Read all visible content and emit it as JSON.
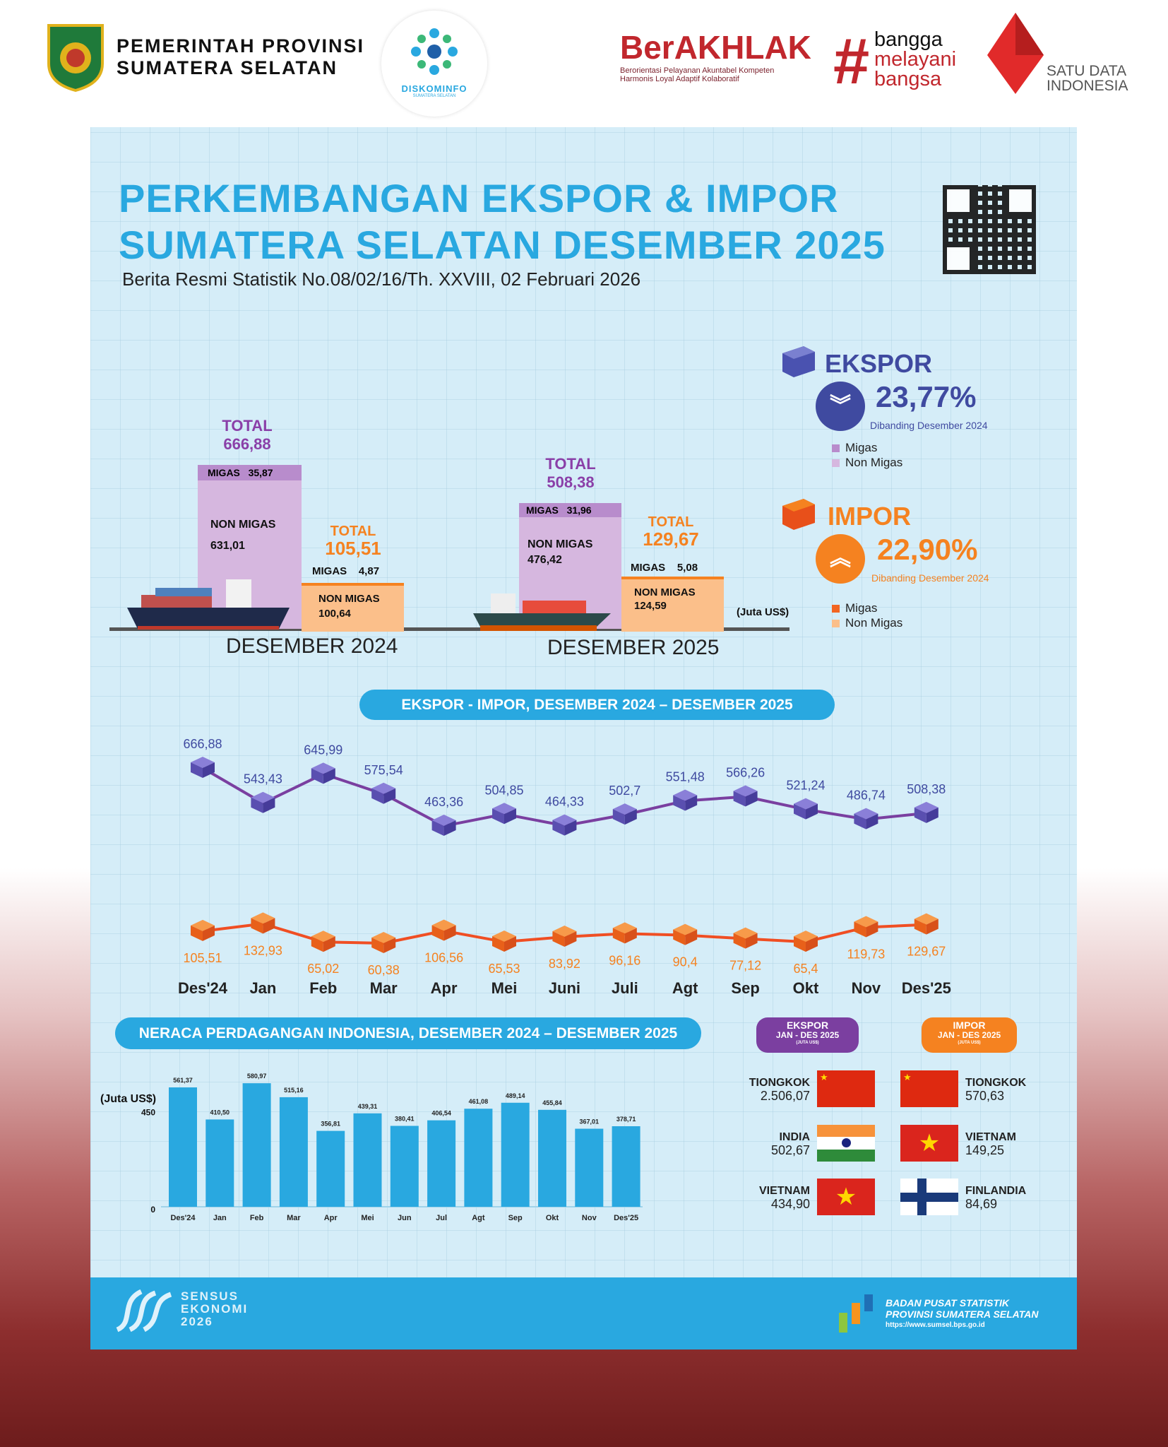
{
  "header": {
    "province_line1": "PEMERINTAH PROVINSI",
    "province_line2": "SUMATERA SELATAN",
    "diskominfo": "DISKOMINFO",
    "diskominfo_sub": "SUMATERA SELATAN",
    "berakhlak": "BerAKHLAK",
    "berakhlak_sub1": "Berorientasi Pelayanan Akuntabel Kompeten",
    "berakhlak_sub2": "Harmonis Loyal Adaptif Kolaboratif",
    "bangga": [
      "bangga",
      "melayani",
      "bangsa"
    ],
    "satu_data": [
      "SATU DATA",
      "INDONESIA"
    ]
  },
  "title_line1": "PERKEMBANGAN EKSPOR & IMPOR",
  "title_line2": "SUMATERA SELATAN DESEMBER 2025",
  "subtitle": "Berita Resmi Statistik No.08/02/16/Th. XXVIII, 02 Februari 2026",
  "colors": {
    "accent": "#29a8e0",
    "ekspor": "#3f4aa0",
    "ekspor_bar": "#d6b7df",
    "ekspor_migas": "#b88ccc",
    "impor": "#f58220",
    "impor_bar": "#fbbf8a",
    "total_ekspor": "#8a3fa8"
  },
  "summary": {
    "ekspor": {
      "label": "EKSPOR",
      "change": "23,77%",
      "direction": "down",
      "note": "Dibanding Desember 2024",
      "legend": [
        "Migas",
        "Non Migas"
      ]
    },
    "impor": {
      "label": "IMPOR",
      "change": "22,90%",
      "direction": "up",
      "note": "Dibanding Desember 2024",
      "legend": [
        "Migas",
        "Non Migas"
      ]
    }
  },
  "comparison": {
    "unit": "(Juta US$)",
    "total_label": "TOTAL",
    "migas_label": "MIGAS",
    "nonmigas_label": "NON MIGAS",
    "periods": [
      {
        "label": "DESEMBER 2024",
        "ekspor": {
          "total": "666,88",
          "migas": "35,87",
          "nonmigas": "631,01"
        },
        "impor": {
          "total": "105,51",
          "migas": "4,87",
          "nonmigas": "100,64"
        }
      },
      {
        "label": "DESEMBER 2025",
        "ekspor": {
          "total": "508,38",
          "migas": "31,96",
          "nonmigas": "476,42"
        },
        "impor": {
          "total": "129,67",
          "migas": "5,08",
          "nonmigas": "124,59"
        }
      }
    ]
  },
  "line_section_title": "EKSPOR - IMPOR, DESEMBER 2024 – DESEMBER 2025",
  "bar_section_title": "NERACA PERDAGANGAN INDONESIA, DESEMBER 2024 – DESEMBER 2025",
  "chart_data": [
    {
      "type": "line",
      "categories": [
        "Des'24",
        "Jan",
        "Feb",
        "Mar",
        "Apr",
        "Mei",
        "Juni",
        "Juli",
        "Agt",
        "Sep",
        "Okt",
        "Nov",
        "Des'25"
      ],
      "series": [
        {
          "name": "EKSPOR",
          "color": "#7a3fa0",
          "values": [
            666.88,
            543.43,
            645.99,
            575.54,
            463.36,
            504.85,
            464.33,
            502.7,
            551.48,
            566.26,
            521.24,
            486.74,
            508.38
          ]
        },
        {
          "name": "IMPOR",
          "color": "#f04e23",
          "values": [
            105.51,
            132.93,
            65.02,
            60.38,
            106.56,
            65.53,
            83.92,
            96.16,
            90.4,
            77.12,
            65.4,
            119.73,
            129.67
          ]
        }
      ]
    },
    {
      "type": "bar",
      "ylabel": "(Juta US$)",
      "yticks": [
        "450",
        "0"
      ],
      "categories": [
        "Des'24",
        "Jan",
        "Feb",
        "Mar",
        "Apr",
        "Mei",
        "Jun",
        "Jul",
        "Agt",
        "Sep",
        "Okt",
        "Nov",
        "Des'25"
      ],
      "values": [
        561.37,
        410.5,
        580.97,
        515.16,
        356.81,
        439.31,
        380.41,
        406.54,
        461.08,
        489.14,
        455.84,
        367.01,
        378.71
      ],
      "color": "#29a8e0"
    }
  ],
  "partners": {
    "ekspor_title": [
      "EKSPOR",
      "JAN - DES 2025",
      "(JUTA US$)"
    ],
    "impor_title": [
      "IMPOR",
      "JAN - DES 2025",
      "(JUTA US$)"
    ],
    "ekspor": [
      {
        "country": "TIONGKOK",
        "value": "2.506,07",
        "flag": "china"
      },
      {
        "country": "INDIA",
        "value": "502,67",
        "flag": "india"
      },
      {
        "country": "VIETNAM",
        "value": "434,90",
        "flag": "vietnam"
      }
    ],
    "impor": [
      {
        "country": "TIONGKOK",
        "value": "570,63",
        "flag": "china"
      },
      {
        "country": "VIETNAM",
        "value": "149,25",
        "flag": "vietnam"
      },
      {
        "country": "FINLANDIA",
        "value": "84,69",
        "flag": "finland"
      }
    ]
  },
  "footer": {
    "sensus": [
      "SENSUS",
      "EKONOMI",
      "2026"
    ],
    "bps": [
      "BADAN PUSAT STATISTIK",
      "PROVINSI SUMATERA SELATAN",
      "https://www.sumsel.bps.go.id"
    ]
  }
}
